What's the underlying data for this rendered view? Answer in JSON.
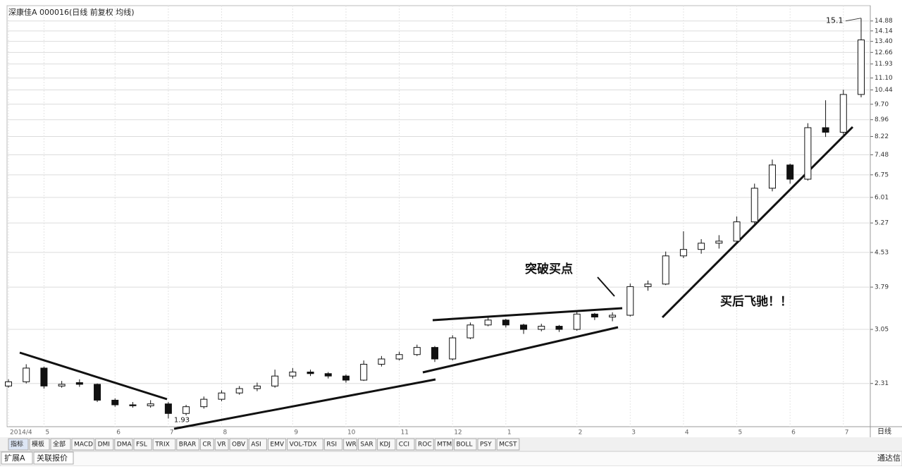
{
  "chart_data": {
    "type": "candlestick",
    "title": "深康佳A 000016(日线 前复权 均线)",
    "log_scale": true,
    "grid": true,
    "up_color": "#ffffff",
    "down_color": "#111111",
    "edge_color": "#111111",
    "categories": [
      "2014/4",
      null,
      "5",
      null,
      null,
      null,
      "6",
      null,
      null,
      "7",
      null,
      null,
      "8",
      null,
      null,
      null,
      "9",
      null,
      null,
      "10",
      null,
      null,
      "11",
      null,
      null,
      "12",
      null,
      null,
      "1",
      null,
      null,
      null,
      "2",
      null,
      null,
      "3",
      null,
      null,
      "4",
      null,
      null,
      "5",
      null,
      null,
      "6",
      null,
      null,
      "7",
      null
    ],
    "open": [
      2.28,
      2.33,
      2.5,
      2.28,
      2.32,
      2.3,
      2.12,
      2.07,
      2.06,
      2.08,
      1.98,
      2.05,
      2.13,
      2.2,
      2.25,
      2.28,
      2.4,
      2.45,
      2.43,
      2.4,
      2.35,
      2.55,
      2.62,
      2.68,
      2.78,
      2.62,
      2.92,
      3.12,
      3.2,
      3.12,
      3.05,
      3.1,
      3.05,
      3.3,
      3.25,
      3.28,
      3.8,
      3.85,
      4.45,
      4.6,
      4.75,
      4.8,
      5.3,
      6.3,
      7.1,
      6.6,
      8.6,
      8.4,
      10.2
    ],
    "high": [
      2.36,
      2.55,
      2.52,
      2.34,
      2.36,
      2.31,
      2.14,
      2.1,
      2.12,
      2.1,
      2.07,
      2.16,
      2.23,
      2.28,
      2.32,
      2.48,
      2.5,
      2.48,
      2.45,
      2.42,
      2.6,
      2.66,
      2.72,
      2.82,
      2.8,
      2.96,
      3.16,
      3.25,
      3.22,
      3.14,
      3.14,
      3.12,
      3.35,
      3.32,
      3.33,
      3.86,
      3.92,
      4.55,
      5.05,
      4.85,
      4.95,
      5.45,
      6.45,
      7.3,
      7.15,
      8.8,
      9.9,
      10.45,
      15.1
    ],
    "low": [
      2.26,
      2.31,
      2.25,
      2.26,
      2.27,
      2.1,
      2.05,
      2.04,
      2.04,
      1.93,
      1.96,
      2.03,
      2.11,
      2.18,
      2.22,
      2.26,
      2.37,
      2.4,
      2.37,
      2.32,
      2.34,
      2.52,
      2.6,
      2.66,
      2.58,
      2.6,
      2.9,
      3.1,
      3.08,
      2.98,
      3.02,
      3.01,
      3.03,
      3.2,
      3.18,
      3.26,
      3.72,
      3.83,
      4.4,
      4.5,
      4.62,
      4.75,
      5.25,
      6.2,
      6.45,
      6.55,
      8.2,
      8.3,
      10.05
    ],
    "close": [
      2.33,
      2.5,
      2.28,
      2.3,
      2.3,
      2.12,
      2.07,
      2.06,
      2.08,
      1.98,
      2.05,
      2.13,
      2.2,
      2.25,
      2.28,
      2.4,
      2.45,
      2.43,
      2.4,
      2.35,
      2.55,
      2.62,
      2.68,
      2.78,
      2.62,
      2.92,
      3.12,
      3.2,
      3.12,
      3.05,
      3.1,
      3.05,
      3.3,
      3.25,
      3.28,
      3.8,
      3.85,
      4.45,
      4.6,
      4.75,
      4.8,
      5.3,
      6.3,
      7.1,
      6.6,
      8.6,
      8.4,
      10.2,
      13.5
    ],
    "ylim": [
      1.85,
      16.1
    ],
    "yticks": [
      2.31,
      3.05,
      3.79,
      4.53,
      5.27,
      6.01,
      6.75,
      7.48,
      8.22,
      8.96,
      {
        "value": 9.7,
        "label": "9.70"
      },
      10.44,
      {
        "value": 11.1,
        "label": "11.10"
      },
      11.93,
      12.66,
      {
        "value": 13.4,
        "label": "13.40"
      },
      14.14,
      14.88
    ],
    "annotations": [
      "突破买点",
      "买后飞驰！！"
    ]
  },
  "toolbar": {
    "tabs": [
      "指标",
      "模板",
      "全部",
      "MACD",
      "DMI",
      "DMA",
      "FSL",
      "TRIX",
      "BRAR",
      "CR",
      "VR",
      "OBV",
      "ASI",
      "EMV",
      "VOL-TDX",
      "RSI",
      "WR",
      "SAR",
      "KDJ",
      "CCI",
      "ROC",
      "MTM",
      "BOLL",
      "PSY",
      "MCST"
    ],
    "bottom": [
      "扩展A",
      "关联报价"
    ],
    "brand": "通达信",
    "period": "日线"
  }
}
